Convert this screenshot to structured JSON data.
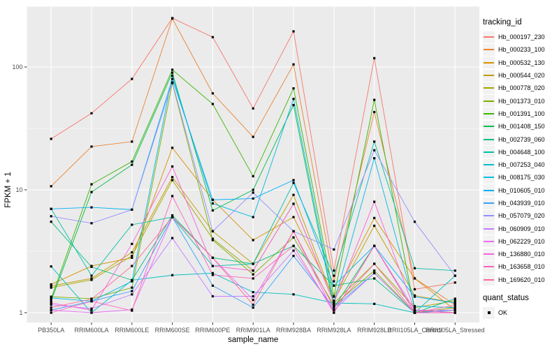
{
  "chart_data": {
    "type": "line",
    "xlabel": "sample_name",
    "ylabel": "FPKM + 1",
    "y_scale": "log10",
    "y_ticks": [
      1,
      10,
      100
    ],
    "ylim": [
      0.83,
      310
    ],
    "grid": "white major+minor gridlines on gray panel",
    "legend_position": "right",
    "panel_color": "#EBEBEB",
    "point_shape": "square",
    "point_color": "#000000",
    "categories": [
      "PB350LA",
      "RRIM600LA",
      "RRIM600LE",
      "RRIM600SE",
      "RRIM600PE",
      "RRIM901LA",
      "RRIM928BA",
      "RRIM928LA",
      "RRIM928LB",
      "RRII105LA_Control",
      "RRII105LA_Stressed"
    ],
    "series": [
      {
        "name": "Hb_000197_230",
        "color": "#F8766D",
        "values": [
          26,
          42,
          80,
          250,
          175,
          46,
          195,
          2.2,
          118,
          1.55,
          1.76
        ]
      },
      {
        "name": "Hb_000233_100",
        "color": "#EA8331",
        "values": [
          10.7,
          22.5,
          24.7,
          248,
          61,
          27,
          105,
          1.8,
          43,
          1.9,
          1.16
        ]
      },
      {
        "name": "Hb_000532_130",
        "color": "#D89000",
        "values": [
          1.7,
          2.4,
          2.8,
          22,
          8.3,
          3.9,
          6.0,
          1.35,
          5.9,
          1.9,
          1.05
        ]
      },
      {
        "name": "Hb_000544_020",
        "color": "#C09B00",
        "values": [
          1.65,
          1.9,
          3.1,
          12.7,
          4.6,
          2.5,
          9.1,
          1.25,
          5.1,
          1.38,
          1.2
        ]
      },
      {
        "name": "Hb_000778_020",
        "color": "#A3A500",
        "values": [
          1.6,
          1.85,
          2.9,
          12.0,
          4.0,
          2.2,
          7.7,
          1.2,
          2.5,
          1.1,
          1.25
        ]
      },
      {
        "name": "Hb_001373_010",
        "color": "#7CAE00",
        "values": [
          1.35,
          1.3,
          1.6,
          74,
          3.9,
          2.05,
          4.1,
          1.15,
          2.2,
          1.0,
          1.1
        ]
      },
      {
        "name": "Hb_001391_100",
        "color": "#39B600",
        "values": [
          1.3,
          11.1,
          17,
          95,
          50,
          12.9,
          67,
          1.36,
          54,
          1.05,
          1.0
        ]
      },
      {
        "name": "Hb_001408_150",
        "color": "#00BB4E",
        "values": [
          1.25,
          9.6,
          16,
          90,
          6.8,
          10,
          49,
          1.1,
          3.5,
          1.0,
          1.05
        ]
      },
      {
        "name": "Hb_002739_060",
        "color": "#00BF7D",
        "values": [
          5.5,
          2.36,
          1.84,
          6.2,
          2.8,
          2.5,
          3.5,
          1.66,
          1.9,
          1.0,
          1.3
        ]
      },
      {
        "name": "Hb_004648_100",
        "color": "#00C1A3",
        "values": [
          7.0,
          2.0,
          5.2,
          6.0,
          2.4,
          2.5,
          11.4,
          2.0,
          24.7,
          2.3,
          2.2
        ]
      },
      {
        "name": "Hb_007253_040",
        "color": "#00BFC4",
        "values": [
          2.38,
          1.0,
          1.84,
          2.02,
          2.1,
          1.47,
          1.41,
          1.2,
          1.18,
          1.0,
          2.0
        ]
      },
      {
        "name": "Hb_008175_030",
        "color": "#00BAE0",
        "values": [
          1.32,
          1.24,
          1.8,
          85,
          7.75,
          6.0,
          55,
          1.2,
          18.1,
          1.13,
          1.1
        ]
      },
      {
        "name": "Hb_010605_010",
        "color": "#00B0F6",
        "values": [
          7.0,
          7.2,
          6.9,
          80,
          8.3,
          8.5,
          12,
          1.66,
          3.5,
          1.35,
          1.2
        ]
      },
      {
        "name": "Hb_043939_010",
        "color": "#35A2FF",
        "values": [
          1.05,
          1.24,
          1.5,
          6.0,
          1.66,
          1.1,
          2.9,
          1.1,
          2.1,
          1.0,
          1.05
        ]
      },
      {
        "name": "Hb_057079_020",
        "color": "#9590FF",
        "values": [
          6.1,
          5.35,
          6.9,
          75,
          4.6,
          9.5,
          4.6,
          3.27,
          21,
          5.5,
          2.0
        ]
      },
      {
        "name": "Hb_060909_010",
        "color": "#C77CFF",
        "values": [
          1.16,
          1.08,
          1.41,
          4.05,
          1.36,
          1.36,
          3.2,
          1.05,
          2.1,
          1.0,
          1.0
        ]
      },
      {
        "name": "Hb_062229_010",
        "color": "#E76BF3",
        "values": [
          1.05,
          1.0,
          1.06,
          6.0,
          2.8,
          1.27,
          4.6,
          1.0,
          3.5,
          1.05,
          1.05
        ]
      },
      {
        "name": "Hb_136880_010",
        "color": "#FA62DB",
        "values": [
          1.2,
          1.05,
          3.63,
          15.5,
          2.4,
          2.2,
          7.7,
          1.2,
          8.0,
          1.05,
          1.0
        ]
      },
      {
        "name": "Hb_163658_010",
        "color": "#FF62BC",
        "values": [
          1.0,
          1.24,
          1.04,
          8.9,
          2.03,
          1.9,
          3.5,
          1.0,
          3.5,
          1.0,
          1.0
        ]
      },
      {
        "name": "Hb_169620_010",
        "color": "#FF6A98",
        "values": [
          1.1,
          1.29,
          2.4,
          6.0,
          2.8,
          1.16,
          4.6,
          1.1,
          2.5,
          1.0,
          1.15
        ]
      }
    ]
  },
  "legend": {
    "tracking_title": "tracking_id",
    "quant_title": "quant_status",
    "quant_ok_label": "OK"
  }
}
